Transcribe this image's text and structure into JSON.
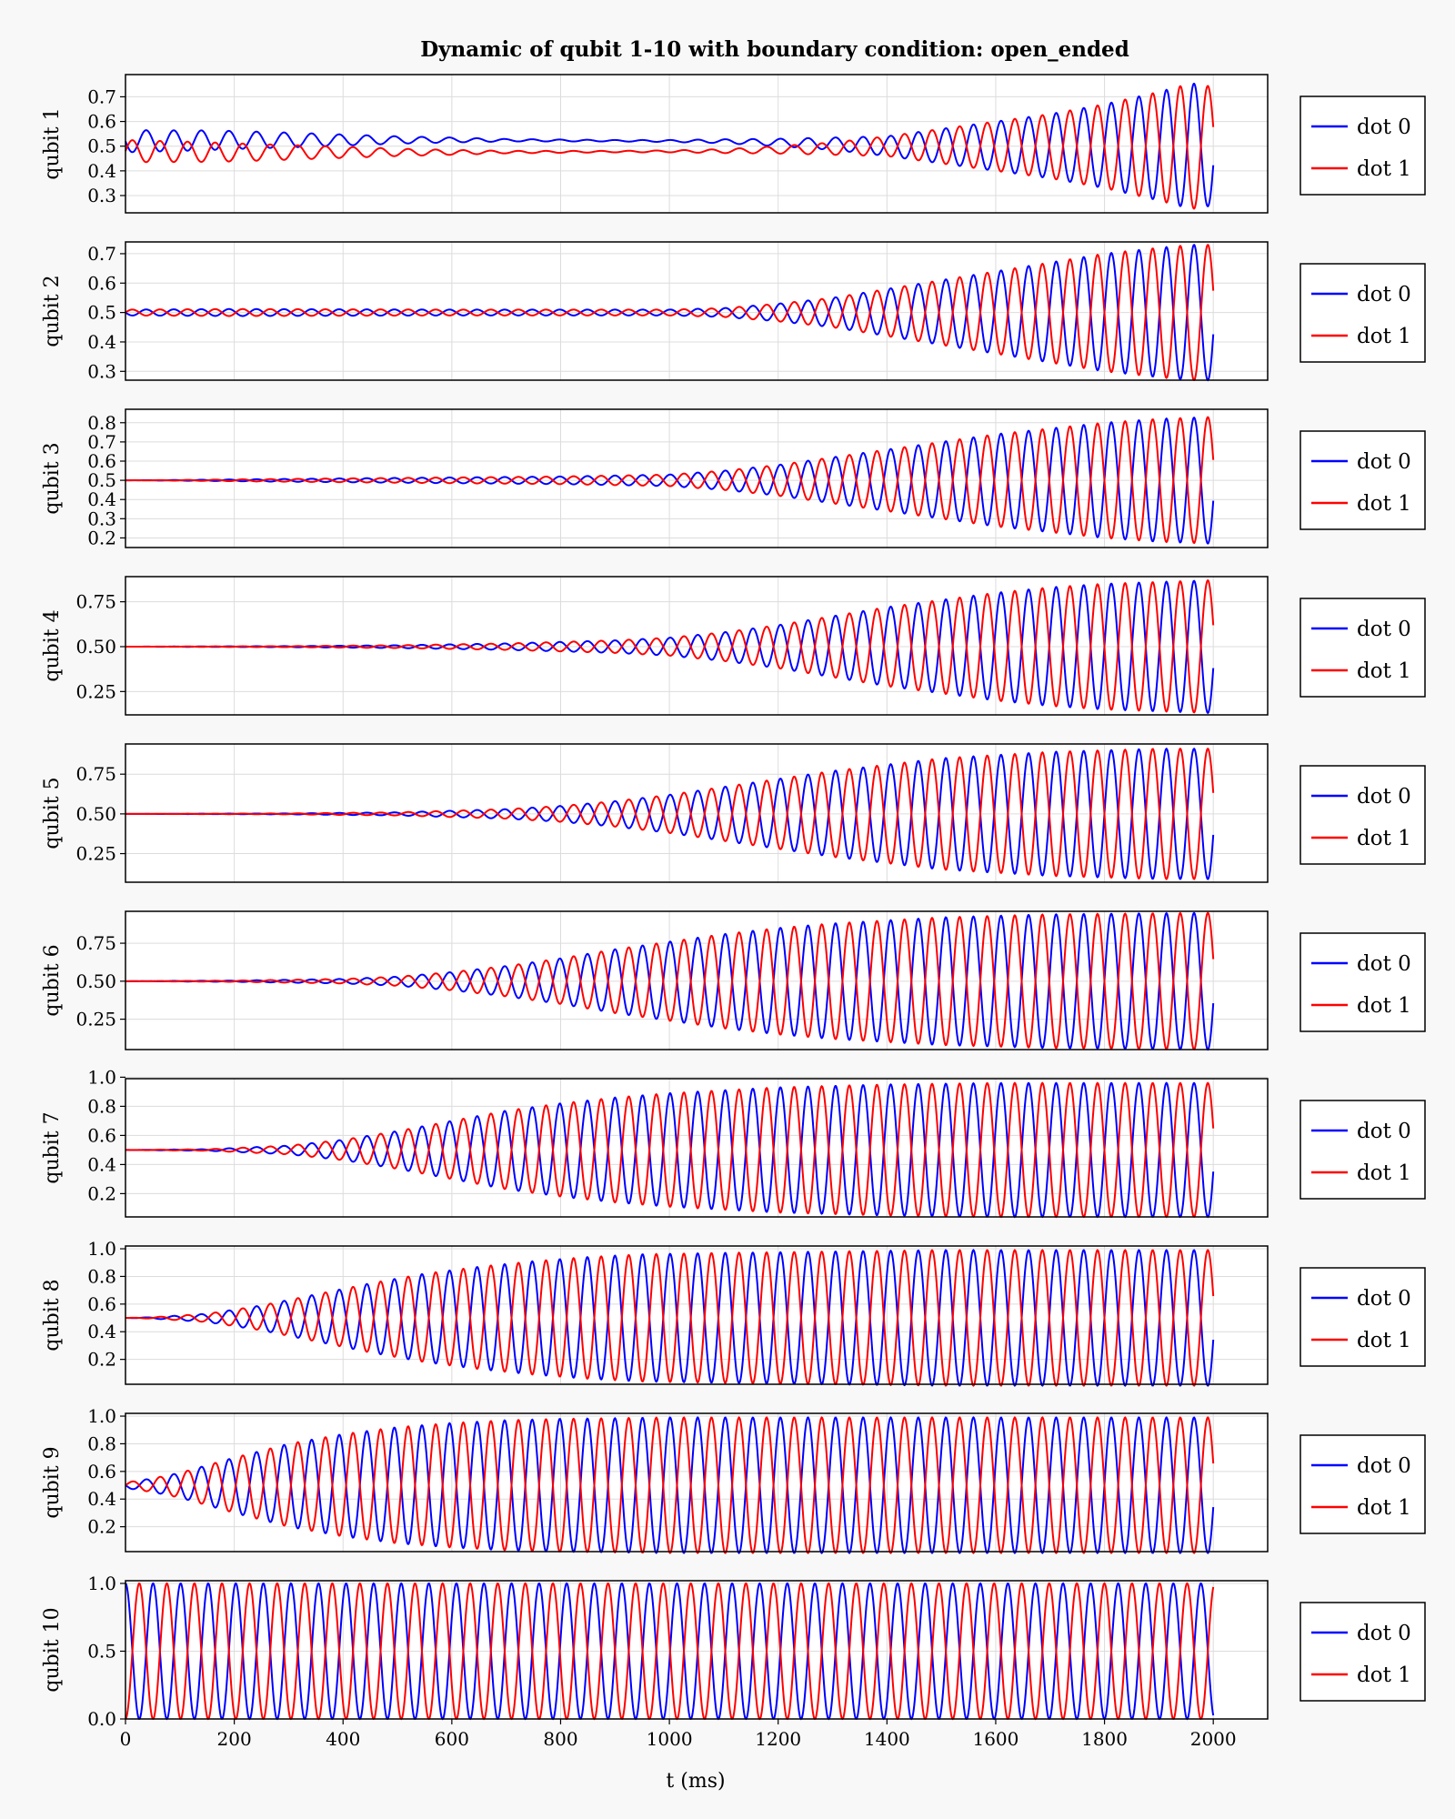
{
  "chart_data": {
    "type": "line",
    "title": "Dynamic of qubit 1-10 with boundary condition: open_ended",
    "xlabel": "t (ms)",
    "xlim": [
      0,
      2100
    ],
    "x_ticks": [
      "0",
      "200",
      "400",
      "600",
      "800",
      "1000",
      "1200",
      "1400",
      "1600",
      "1800",
      "2000"
    ],
    "grid": true,
    "legend_placement": "right of each panel",
    "series_colors": {
      "dot 0": "#0000ff",
      "dot 1": "#ff0000"
    },
    "oscillation_period_ms": 50.7,
    "t_range": [
      0,
      2000
    ],
    "panels": [
      {
        "ylabel": "qubit 1",
        "ylim": [
          0.23,
          0.79
        ],
        "y_ticks": [
          "0.3",
          "0.4",
          "0.5",
          "0.6",
          "0.7"
        ],
        "legend": [
          "dot 0",
          "dot 1"
        ],
        "envelope": {
          "t": [
            0,
            150,
            300,
            500,
            700,
            900,
            1000,
            1100,
            1200,
            1300,
            1400,
            1500,
            1600,
            1700,
            1800,
            1900,
            1960,
            2000
          ],
          "amp": [
            0.045,
            0.04,
            0.03,
            0.015,
            0.005,
            0.003,
            0.004,
            0.008,
            0.015,
            0.025,
            0.04,
            0.07,
            0.1,
            0.13,
            0.17,
            0.22,
            0.255,
            0.24
          ]
        },
        "offset": {
          "t": [
            0,
            200,
            600,
            1100,
            1300,
            1400,
            2000
          ],
          "delta": [
            0.02,
            0.025,
            0.025,
            0.02,
            0.01,
            0,
            0
          ]
        },
        "end_values": {
          "dot 0": 0.28,
          "dot 1": 0.72
        }
      },
      {
        "ylabel": "qubit 2",
        "ylim": [
          0.27,
          0.74
        ],
        "y_ticks": [
          "0.3",
          "0.4",
          "0.5",
          "0.6",
          "0.7"
        ],
        "legend": [
          "dot 0",
          "dot 1"
        ],
        "envelope": {
          "t": [
            0,
            200,
            600,
            1000,
            1100,
            1200,
            1300,
            1400,
            1500,
            1600,
            1700,
            1800,
            1900,
            1960,
            2000
          ],
          "amp": [
            0.01,
            0.012,
            0.01,
            0.01,
            0.015,
            0.03,
            0.05,
            0.08,
            0.11,
            0.14,
            0.17,
            0.2,
            0.22,
            0.23,
            0.23
          ]
        },
        "end_values": {
          "dot 0": 0.61,
          "dot 1": 0.39
        }
      },
      {
        "ylabel": "qubit 3",
        "ylim": [
          0.15,
          0.87
        ],
        "y_ticks": [
          "0.2",
          "0.3",
          "0.4",
          "0.5",
          "0.6",
          "0.7",
          "0.8"
        ],
        "legend": [
          "dot 0",
          "dot 1"
        ],
        "envelope": {
          "t": [
            0,
            100,
            400,
            800,
            1000,
            1100,
            1200,
            1300,
            1400,
            1500,
            1600,
            1700,
            1800,
            1900,
            2000
          ],
          "amp": [
            0,
            0.002,
            0.01,
            0.02,
            0.03,
            0.05,
            0.08,
            0.12,
            0.16,
            0.2,
            0.24,
            0.27,
            0.3,
            0.32,
            0.33
          ]
        },
        "end_values": {
          "dot 0": 0.83,
          "dot 1": 0.17
        }
      },
      {
        "ylabel": "qubit 4",
        "ylim": [
          0.12,
          0.89
        ],
        "y_ticks": [
          "0.25",
          "0.50",
          "0.75"
        ],
        "legend": [
          "dot 0",
          "dot 1"
        ],
        "envelope": {
          "t": [
            0,
            300,
            500,
            700,
            900,
            1000,
            1100,
            1200,
            1300,
            1400,
            1500,
            1600,
            1700,
            1800,
            1900,
            2000
          ],
          "amp": [
            0,
            0.003,
            0.008,
            0.018,
            0.035,
            0.05,
            0.08,
            0.12,
            0.17,
            0.22,
            0.26,
            0.3,
            0.33,
            0.35,
            0.36,
            0.37
          ]
        },
        "end_values": {
          "dot 0": 0.33,
          "dot 1": 0.66
        }
      },
      {
        "ylabel": "qubit 5",
        "ylim": [
          0.07,
          0.94
        ],
        "y_ticks": [
          "0.25",
          "0.50",
          "0.75"
        ],
        "legend": [
          "dot 0",
          "dot 1"
        ],
        "envelope": {
          "t": [
            0,
            300,
            500,
            700,
            800,
            900,
            1000,
            1100,
            1200,
            1300,
            1400,
            1500,
            1600,
            1700,
            1800,
            1900,
            2000
          ],
          "amp": [
            0,
            0.003,
            0.01,
            0.03,
            0.05,
            0.08,
            0.12,
            0.17,
            0.22,
            0.27,
            0.31,
            0.35,
            0.37,
            0.39,
            0.4,
            0.41,
            0.41
          ]
        },
        "end_values": {
          "dot 0": 0.1,
          "dot 1": 0.9
        }
      },
      {
        "ylabel": "qubit 6",
        "ylim": [
          0.05,
          0.96
        ],
        "y_ticks": [
          "0.25",
          "0.50",
          "0.75"
        ],
        "legend": [
          "dot 0",
          "dot 1"
        ],
        "envelope": {
          "t": [
            0,
            200,
            400,
            500,
            600,
            700,
            800,
            900,
            1000,
            1100,
            1200,
            1300,
            1400,
            1500,
            1600,
            1700,
            2000
          ],
          "amp": [
            0,
            0.004,
            0.015,
            0.03,
            0.06,
            0.1,
            0.15,
            0.21,
            0.26,
            0.31,
            0.35,
            0.38,
            0.4,
            0.42,
            0.43,
            0.44,
            0.45
          ]
        },
        "end_values": {
          "dot 0": 0.71,
          "dot 1": 0.29
        }
      },
      {
        "ylabel": "qubit 7",
        "ylim": [
          0.04,
          0.99
        ],
        "y_ticks": [
          "0.2",
          "0.4",
          "0.6",
          "0.8",
          "1.0"
        ],
        "legend": [
          "dot 0",
          "dot 1"
        ],
        "envelope": {
          "t": [
            0,
            150,
            300,
            400,
            500,
            600,
            700,
            800,
            900,
            1000,
            1100,
            1200,
            1300,
            1400,
            1600,
            2000
          ],
          "amp": [
            0,
            0.005,
            0.03,
            0.07,
            0.13,
            0.2,
            0.27,
            0.32,
            0.36,
            0.39,
            0.41,
            0.43,
            0.44,
            0.45,
            0.46,
            0.46
          ]
        },
        "end_values": {
          "dot 0": 0.94,
          "dot 1": 0.06
        }
      },
      {
        "ylabel": "qubit 8",
        "ylim": [
          0.02,
          1.02
        ],
        "y_ticks": [
          "0.2",
          "0.4",
          "0.6",
          "0.8",
          "1.0"
        ],
        "legend": [
          "dot 0",
          "dot 1"
        ],
        "envelope": {
          "t": [
            0,
            50,
            150,
            250,
            350,
            450,
            550,
            650,
            750,
            850,
            950,
            1100,
            1300,
            1500,
            2000
          ],
          "amp": [
            0,
            0.005,
            0.03,
            0.09,
            0.17,
            0.25,
            0.32,
            0.37,
            0.41,
            0.44,
            0.46,
            0.47,
            0.48,
            0.49,
            0.49
          ]
        },
        "end_values": {
          "dot 0": 0.26,
          "dot 1": 0.74
        }
      },
      {
        "ylabel": "qubit 9",
        "ylim": [
          0.02,
          1.02
        ],
        "y_ticks": [
          "0.2",
          "0.4",
          "0.6",
          "0.8",
          "1.0"
        ],
        "legend": [
          "dot 0",
          "dot 1"
        ],
        "envelope": {
          "t": [
            0,
            50,
            100,
            200,
            300,
            400,
            500,
            600,
            700,
            800,
            1000,
            1200,
            1500,
            2000
          ],
          "amp": [
            0.02,
            0.05,
            0.09,
            0.2,
            0.3,
            0.37,
            0.42,
            0.45,
            0.47,
            0.48,
            0.49,
            0.49,
            0.49,
            0.49
          ]
        },
        "end_values": {
          "dot 0": 0.03,
          "dot 1": 0.97
        }
      },
      {
        "ylabel": "qubit 10",
        "ylim": [
          0.0,
          1.02
        ],
        "y_ticks": [
          "0.0",
          "0.5",
          "1.0"
        ],
        "legend": [
          "dot 0",
          "dot 1"
        ],
        "envelope": {
          "t": [
            0,
            2000
          ],
          "amp": [
            0.5,
            0.5
          ]
        },
        "start_values": {
          "dot 0": 1.0,
          "dot 1": 0.0
        },
        "end_values": {
          "dot 0": 0.73,
          "dot 1": 0.27
        }
      }
    ]
  }
}
